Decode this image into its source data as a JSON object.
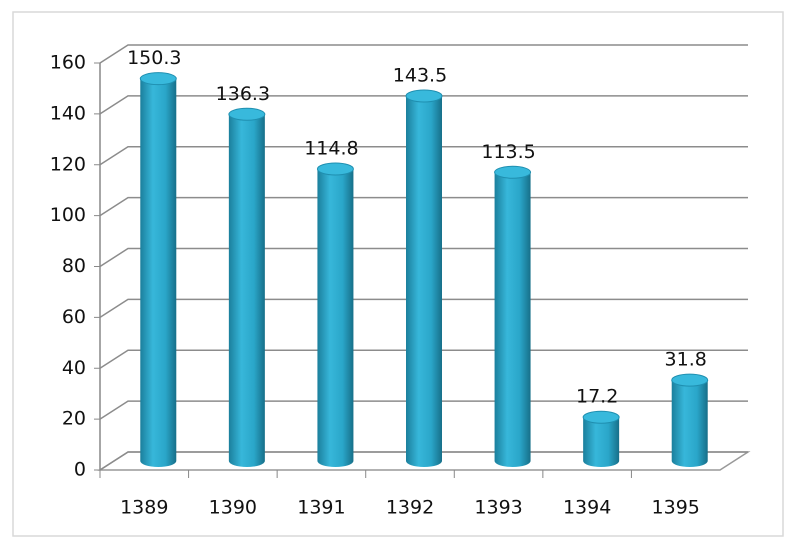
{
  "chart_data": {
    "type": "bar",
    "categories": [
      "1389",
      "1390",
      "1391",
      "1392",
      "1393",
      "1394",
      "1395"
    ],
    "values": [
      150.3,
      136.3,
      114.8,
      143.5,
      113.5,
      17.2,
      31.8
    ],
    "color": "#2aa6c9",
    "ylim": [
      0,
      160
    ],
    "yticks": [
      0,
      20,
      40,
      60,
      80,
      100,
      120,
      140,
      160
    ],
    "grid": true
  }
}
